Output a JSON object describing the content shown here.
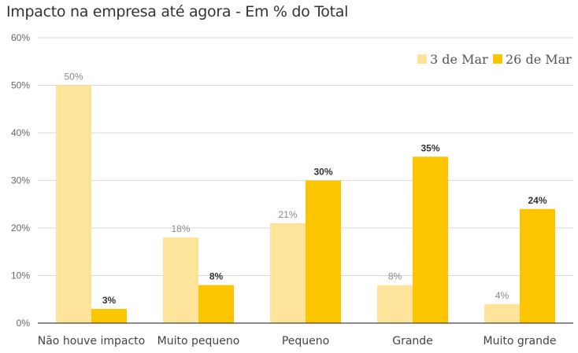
{
  "chart_data": {
    "type": "bar",
    "title": "Impacto na empresa até agora - Em % do Total",
    "xlabel": "",
    "ylabel": "",
    "ylim": [
      0,
      60
    ],
    "yticks": [
      0,
      10,
      20,
      30,
      40,
      50,
      60
    ],
    "ytick_labels": [
      "0%",
      "10%",
      "20%",
      "30%",
      "40%",
      "50%",
      "60%"
    ],
    "grid": true,
    "legend_position": "top-right",
    "categories": [
      "Não houve impacto",
      "Muito pequeno",
      "Pequeno",
      "Grande",
      "Muito grande"
    ],
    "series": [
      {
        "name": "3 de Mar",
        "color": "#fde49a",
        "values": [
          50,
          18,
          21,
          8,
          4
        ],
        "labels": [
          "50%",
          "18%",
          "21%",
          "8%",
          "4%"
        ]
      },
      {
        "name": "26 de Mar",
        "color": "#fbc600",
        "values": [
          3,
          8,
          30,
          35,
          24
        ],
        "labels": [
          "3%",
          "8%",
          "30%",
          "35%",
          "24%"
        ]
      }
    ]
  }
}
